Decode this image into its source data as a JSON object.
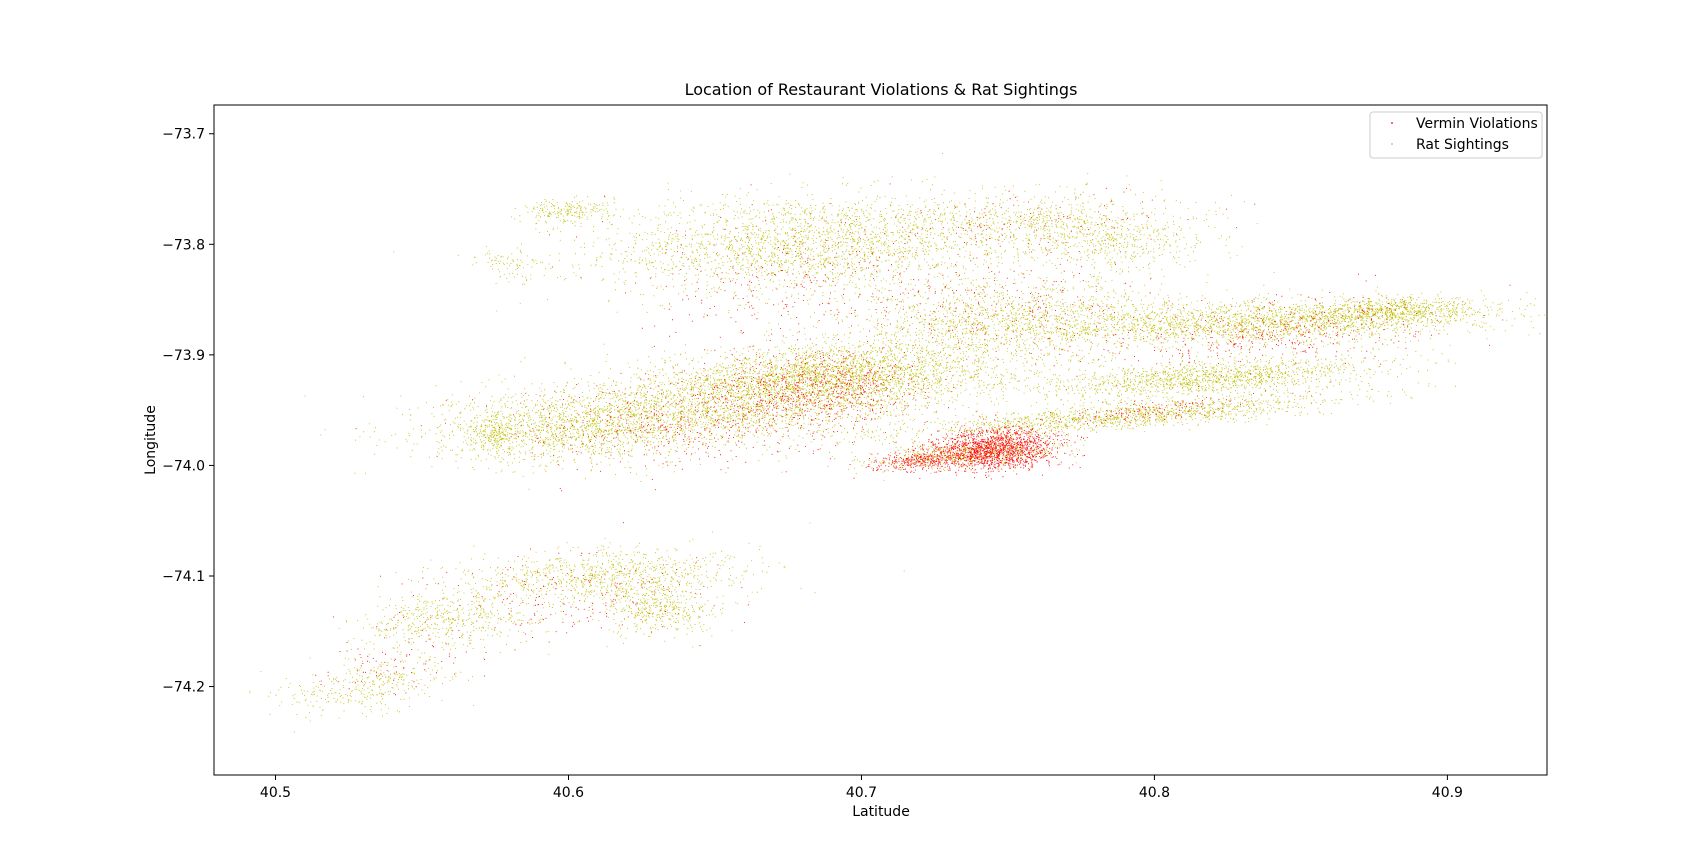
{
  "chart_data": {
    "type": "scatter",
    "title": "Location of Restaurant Violations & Rat Sightings",
    "xlabel": "Latitude",
    "ylabel": "Longitude",
    "xlim": [
      40.479,
      40.934
    ],
    "ylim": [
      -74.28,
      -73.674
    ],
    "y_inverted": false,
    "x_ticks": [
      40.5,
      40.6,
      40.7,
      40.8,
      40.9
    ],
    "x_tick_labels": [
      "40.5",
      "40.6",
      "40.7",
      "40.8",
      "40.9"
    ],
    "y_ticks": [
      -73.7,
      -73.8,
      -73.9,
      -74.0,
      -74.1,
      -74.2
    ],
    "y_tick_labels": [
      "−73.7",
      "−73.8",
      "−73.9",
      "−74.0",
      "−74.1",
      "−74.2"
    ],
    "grid": false,
    "legend_position": "top-right",
    "series": [
      {
        "name": "Vermin Violations",
        "color": "#ff0000",
        "clusters": [
          {
            "cx": 40.745,
            "cy": -73.985,
            "sx": 0.012,
            "sy": 0.02,
            "rot": 0.55,
            "n": 1600
          },
          {
            "cx": 40.72,
            "cy": -73.995,
            "sx": 0.01,
            "sy": 0.01,
            "rot": 0.5,
            "n": 300
          },
          {
            "cx": 40.685,
            "cy": -73.93,
            "sx": 0.018,
            "sy": 0.035,
            "rot": 0.3,
            "n": 700
          },
          {
            "cx": 40.64,
            "cy": -73.96,
            "sx": 0.03,
            "sy": 0.04,
            "rot": 0.4,
            "n": 500
          },
          {
            "cx": 40.68,
            "cy": -73.83,
            "sx": 0.03,
            "sy": 0.06,
            "rot": 0.3,
            "n": 300
          },
          {
            "cx": 40.755,
            "cy": -73.86,
            "sx": 0.025,
            "sy": 0.05,
            "rot": 0.3,
            "n": 250
          },
          {
            "cx": 40.84,
            "cy": -73.88,
            "sx": 0.03,
            "sy": 0.03,
            "rot": 0.5,
            "n": 400
          },
          {
            "cx": 40.8,
            "cy": -73.95,
            "sx": 0.02,
            "sy": 0.01,
            "rot": 0.5,
            "n": 150
          },
          {
            "cx": 40.6,
            "cy": -74.12,
            "sx": 0.03,
            "sy": 0.04,
            "rot": 0.5,
            "n": 200
          },
          {
            "cx": 40.54,
            "cy": -74.18,
            "sx": 0.02,
            "sy": 0.03,
            "rot": 0.8,
            "n": 80
          },
          {
            "cx": 40.76,
            "cy": -73.78,
            "sx": 0.03,
            "sy": 0.03,
            "rot": 0.3,
            "n": 120
          }
        ]
      },
      {
        "name": "Rat Sightings",
        "color": "#bfbf00",
        "clusters": [
          {
            "cx": 40.68,
            "cy": -73.8,
            "sx": 0.035,
            "sy": 0.045,
            "rot": 0.2,
            "n": 2200
          },
          {
            "cx": 40.69,
            "cy": -73.92,
            "sx": 0.03,
            "sy": 0.03,
            "rot": 0.2,
            "n": 2600
          },
          {
            "cx": 40.64,
            "cy": -73.95,
            "sx": 0.04,
            "sy": 0.035,
            "rot": 0.3,
            "n": 2200
          },
          {
            "cx": 40.6,
            "cy": -73.97,
            "sx": 0.025,
            "sy": 0.03,
            "rot": 0.3,
            "n": 900
          },
          {
            "cx": 40.75,
            "cy": -73.87,
            "sx": 0.03,
            "sy": 0.04,
            "rot": 0.2,
            "n": 1500
          },
          {
            "cx": 40.76,
            "cy": -73.78,
            "sx": 0.025,
            "sy": 0.03,
            "rot": 0.2,
            "n": 700
          },
          {
            "cx": 40.79,
            "cy": -73.8,
            "sx": 0.015,
            "sy": 0.025,
            "rot": 0.2,
            "n": 350
          },
          {
            "cx": 40.79,
            "cy": -73.955,
            "sx": 0.04,
            "sy": 0.012,
            "rot": 0.35,
            "n": 1300
          },
          {
            "cx": 40.735,
            "cy": -73.99,
            "sx": 0.018,
            "sy": 0.012,
            "rot": 0.35,
            "n": 600
          },
          {
            "cx": 40.84,
            "cy": -73.87,
            "sx": 0.04,
            "sy": 0.02,
            "rot": 0.15,
            "n": 2000
          },
          {
            "cx": 40.82,
            "cy": -73.92,
            "sx": 0.03,
            "sy": 0.015,
            "rot": 0.3,
            "n": 1300
          },
          {
            "cx": 40.88,
            "cy": -73.86,
            "sx": 0.015,
            "sy": 0.012,
            "rot": 0.2,
            "n": 600
          },
          {
            "cx": 40.61,
            "cy": -74.1,
            "sx": 0.025,
            "sy": 0.025,
            "rot": 0.2,
            "n": 900
          },
          {
            "cx": 40.63,
            "cy": -74.13,
            "sx": 0.01,
            "sy": 0.025,
            "rot": 0.2,
            "n": 400
          },
          {
            "cx": 40.56,
            "cy": -74.14,
            "sx": 0.02,
            "sy": 0.03,
            "rot": 0.8,
            "n": 500
          },
          {
            "cx": 40.53,
            "cy": -74.2,
            "sx": 0.02,
            "sy": 0.025,
            "rot": 0.8,
            "n": 350
          },
          {
            "cx": 40.6,
            "cy": -73.77,
            "sx": 0.008,
            "sy": 0.012,
            "rot": 0.2,
            "n": 200
          },
          {
            "cx": 40.58,
            "cy": -73.82,
            "sx": 0.006,
            "sy": 0.02,
            "rot": 0.6,
            "n": 90
          },
          {
            "cx": 40.575,
            "cy": -73.97,
            "sx": 0.004,
            "sy": 0.02,
            "rot": 0.0,
            "n": 150
          }
        ]
      }
    ]
  }
}
